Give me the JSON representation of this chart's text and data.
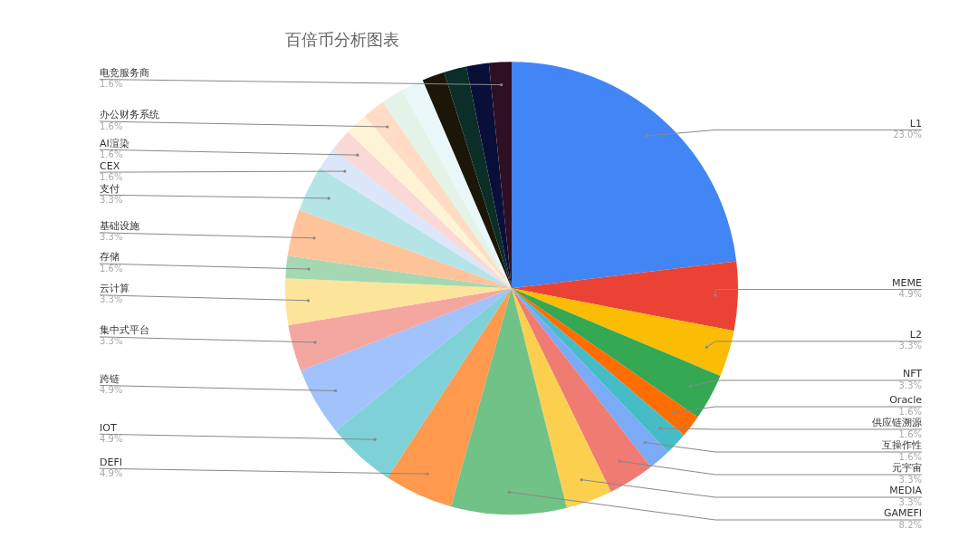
{
  "chart_data": {
    "type": "pie",
    "title": "百倍币分析图表",
    "categories": [
      "L1",
      "MEME",
      "L2",
      "NFT",
      "Oracle",
      "供应链溯源",
      "互操作性",
      "元宇宙",
      "MEDIA",
      "GAMEFI",
      "DEFI",
      "IOT",
      "跨链",
      "集中式平台",
      "云计算",
      "存储",
      "基础设施",
      "支付",
      "CEX",
      "AI渲染",
      null,
      "办公财务系统",
      null,
      null,
      null,
      null,
      null,
      "电竞服务商"
    ],
    "values": [
      23.0,
      4.9,
      3.3,
      3.3,
      1.6,
      1.6,
      1.6,
      3.3,
      3.3,
      8.2,
      4.9,
      4.9,
      4.9,
      3.3,
      3.3,
      1.6,
      3.3,
      3.3,
      1.6,
      1.6,
      1.6,
      1.6,
      1.6,
      1.6,
      1.6,
      1.6,
      1.6,
      1.6
    ],
    "value_labels": [
      "23.0%",
      "4.9%",
      "3.3%",
      "3.3%",
      "1.6%",
      "1.6%",
      "1.6%",
      "3.3%",
      "3.3%",
      "8.2%",
      "4.9%",
      "4.9%",
      "4.9%",
      "3.3%",
      "3.3%",
      "1.6%",
      "3.3%",
      "3.3%",
      "1.6%",
      "1.6%",
      null,
      "1.6%",
      null,
      null,
      null,
      null,
      null,
      "1.6%"
    ],
    "colors": [
      "#4285f4",
      "#ea4335",
      "#fbbc04",
      "#34a853",
      "#ff6d01",
      "#46bdc6",
      "#7baaf7",
      "#f07b72",
      "#fcd04f",
      "#71c287",
      "#ff994d",
      "#7ed1d7",
      "#a1c2fa",
      "#f4a7a1",
      "#fde49b",
      "#a4d8b2",
      "#ffc39a",
      "#b5e4e7",
      "#dbe6fb",
      "#f9d8d5",
      "#fef3d5",
      "#ffdcc3",
      "#e3f3e7",
      "#e9f7f8",
      "#1c1608",
      "#0b2e28",
      "#0a0f3a",
      "#2e0f24"
    ],
    "legend": false
  }
}
